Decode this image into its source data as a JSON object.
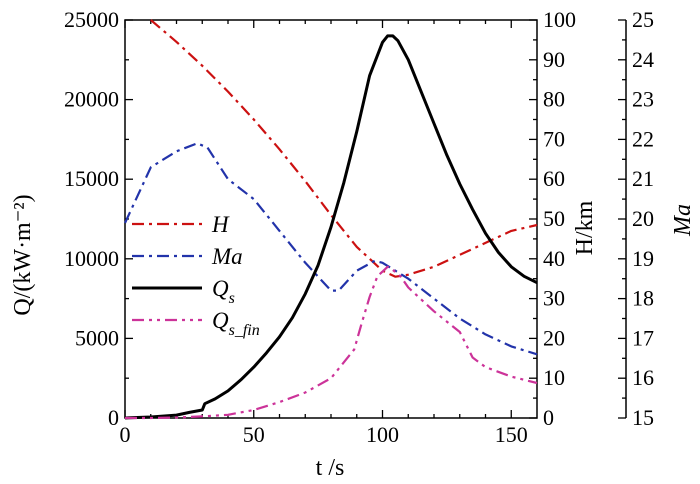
{
  "chart_data": {
    "type": "line",
    "xlabel": "t /s",
    "ylabel_left": "Q/(kW·m⁻²)",
    "ylabel_right_H": "H/km",
    "ylabel_right_Ma": "Ma",
    "xlim": [
      0,
      160
    ],
    "ylim_left": [
      0,
      25000
    ],
    "ylim_H": [
      0,
      100
    ],
    "ylim_Ma": [
      15,
      25
    ],
    "x_ticks": [
      0,
      50,
      100,
      150
    ],
    "left_ticks": [
      0,
      5000,
      10000,
      15000,
      20000,
      25000
    ],
    "H_ticks": [
      0,
      10,
      20,
      30,
      40,
      50,
      60,
      70,
      80,
      90,
      100
    ],
    "Ma_ticks": [
      15,
      16,
      17,
      18,
      19,
      20,
      21,
      22,
      23,
      24,
      25
    ],
    "series": [
      {
        "name": "H",
        "label_main": "H",
        "label_sub": "",
        "axis": "H",
        "color": "#cc1111",
        "dash": "12,5,3,5",
        "x": [
          10,
          20,
          30,
          40,
          50,
          60,
          70,
          80,
          90,
          100,
          105,
          110,
          120,
          130,
          140,
          150,
          160
        ],
        "values": [
          100,
          94.5,
          88.5,
          82,
          75,
          67.5,
          59.5,
          51,
          43,
          37,
          35.5,
          36,
          38,
          41,
          44,
          47,
          48.5
        ]
      },
      {
        "name": "Ma",
        "label_main": "Ma",
        "label_sub": "",
        "axis": "Ma",
        "color": "#2233aa",
        "dash": "12,5,3,5",
        "x": [
          0,
          10,
          20,
          28,
          32,
          40,
          50,
          60,
          70,
          80,
          83,
          90,
          97,
          100,
          110,
          120,
          130,
          140,
          150,
          160
        ],
        "values": [
          19.9,
          21.3,
          21.7,
          21.9,
          21.8,
          21.0,
          20.5,
          19.7,
          18.9,
          18.2,
          18.2,
          18.7,
          18.95,
          18.9,
          18.5,
          18.0,
          17.5,
          17.1,
          16.8,
          16.6
        ]
      },
      {
        "name": "Qs",
        "label_main": "Q",
        "label_sub": "s",
        "axis": "Q",
        "color": "#000000",
        "dash": "",
        "x": [
          0,
          10,
          20,
          25,
          30,
          31,
          35,
          40,
          45,
          50,
          55,
          60,
          65,
          70,
          75,
          80,
          85,
          90,
          95,
          100,
          102,
          104,
          106,
          110,
          115,
          120,
          125,
          130,
          135,
          140,
          145,
          150,
          155,
          160
        ],
        "values": [
          0,
          60,
          180,
          350,
          500,
          900,
          1200,
          1700,
          2400,
          3200,
          4100,
          5100,
          6300,
          7800,
          9600,
          12000,
          14800,
          18000,
          21500,
          23600,
          24000,
          24000,
          23700,
          22500,
          20500,
          18500,
          16500,
          14700,
          13100,
          11600,
          10400,
          9500,
          8900,
          8500
        ]
      },
      {
        "name": "Qs_fin",
        "label_main": "Q",
        "label_sub": "s_fin",
        "axis": "Q",
        "color": "#cc3399",
        "dash": "12,5,3,5,3,5",
        "x": [
          0,
          10,
          20,
          30,
          40,
          50,
          60,
          70,
          80,
          89,
          92,
          95,
          98,
          102,
          104,
          107,
          110,
          120,
          130,
          135,
          140,
          150,
          160
        ],
        "values": [
          0,
          0,
          30,
          100,
          200,
          500,
          1000,
          1600,
          2500,
          4300,
          6000,
          7600,
          8900,
          9500,
          9300,
          8900,
          8200,
          6700,
          5400,
          3800,
          3200,
          2600,
          2200
        ]
      }
    ]
  }
}
